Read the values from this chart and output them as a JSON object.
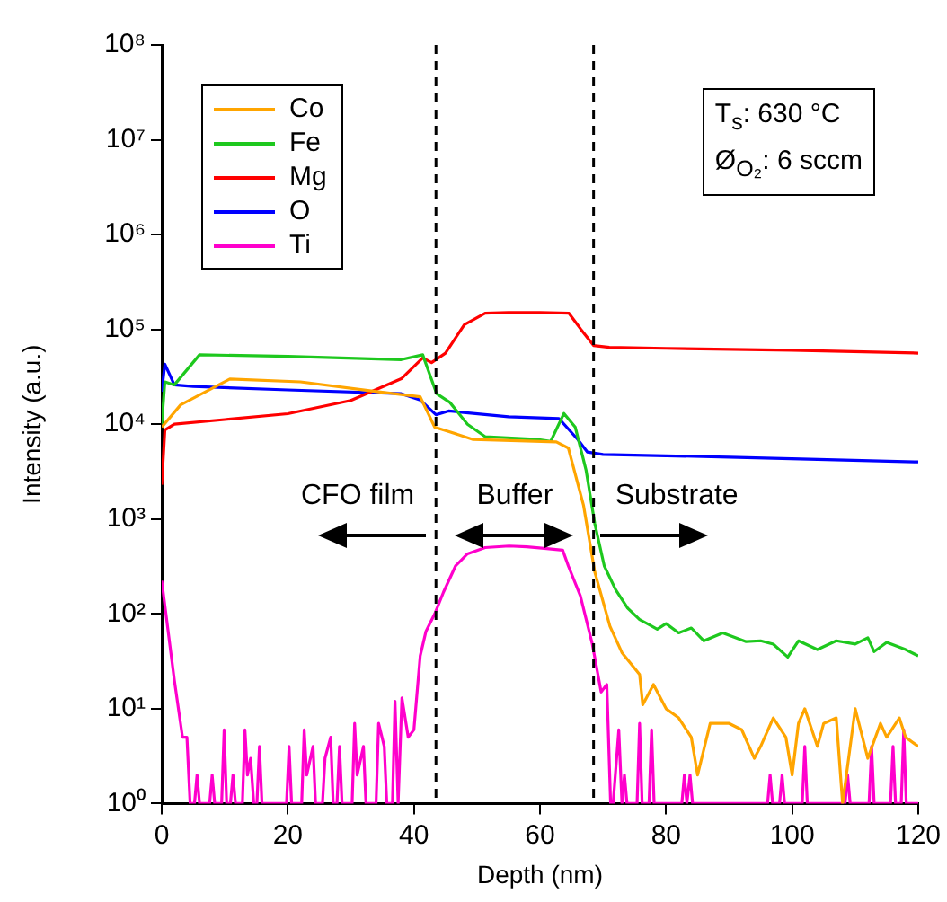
{
  "chart_data": {
    "type": "line",
    "xlabel": "Depth (nm)",
    "ylabel": "Intensity (a.u.)",
    "log": "y",
    "xlim": [
      0,
      120
    ],
    "xticks": [
      0,
      20,
      40,
      60,
      80,
      100,
      120
    ],
    "ylim": [
      1,
      100000000
    ],
    "yticks": [
      {
        "value": 1,
        "label": "10⁰"
      },
      {
        "value": 10,
        "label": "10¹"
      },
      {
        "value": 100,
        "label": "10²"
      },
      {
        "value": 1000,
        "label": "10³"
      },
      {
        "value": 10000,
        "label": "10⁴"
      },
      {
        "value": 100000,
        "label": "10⁵"
      },
      {
        "value": 1000000,
        "label": "10⁶"
      },
      {
        "value": 10000000,
        "label": "10⁷"
      },
      {
        "value": 100000000,
        "label": "10⁸"
      }
    ],
    "grid": false,
    "legend": "top left",
    "marker": "none",
    "line_style": "solid",
    "series": [
      {
        "name": "Co",
        "color": "#ffa500",
        "x": [
          0,
          3,
          10.8,
          22,
          34.4,
          41,
          43.3,
          45.7,
          49.4,
          62.6,
          64.5,
          66.9,
          68.7,
          71.1,
          73,
          75.8,
          76.3,
          78,
          80,
          82,
          84,
          85,
          87,
          90,
          92,
          94,
          95,
          97,
          99,
          100,
          101,
          102,
          104,
          105,
          107,
          108,
          110,
          112,
          114,
          115,
          117,
          118,
          120
        ],
        "values": [
          9300,
          16000,
          30000,
          28000,
          22000,
          19500,
          9300,
          8300,
          6900,
          6500,
          5600,
          1400,
          275,
          74,
          39,
          23,
          11,
          18,
          10,
          8,
          5,
          2,
          7,
          7,
          6,
          3,
          4,
          8,
          5,
          2,
          7,
          10,
          4,
          7,
          8,
          1,
          10,
          3,
          7,
          5,
          8,
          5,
          4
        ]
      },
      {
        "name": "Fe",
        "color": "#1ec81e",
        "x": [
          0,
          0.5,
          2,
          6,
          20,
          38,
          41.4,
          43.6,
          45.7,
          48.5,
          51.3,
          59.8,
          61.7,
          63.8,
          65.6,
          67.3,
          68.7,
          70.2,
          72,
          73.9,
          75.8,
          77,
          78.6,
          80,
          82,
          84,
          86,
          89,
          92.7,
          95,
          97,
          99.3,
          101,
          104,
          107,
          110,
          112,
          113,
          115,
          118,
          120
        ],
        "values": [
          10000,
          28000,
          26000,
          54000,
          52000,
          48000,
          54000,
          21000,
          17000,
          10000,
          7400,
          6900,
          6600,
          13000,
          9300,
          3300,
          890,
          320,
          180,
          115,
          87,
          79,
          69,
          79,
          63,
          71,
          52,
          63,
          51,
          52,
          48,
          35,
          52,
          42,
          52,
          48,
          56,
          40,
          50,
          42,
          36
        ]
      },
      {
        "name": "Mg",
        "color": "#ff0000",
        "x": [
          0,
          0.5,
          2,
          10,
          20,
          30,
          38,
          41.4,
          42.8,
          45,
          48,
          51.3,
          55,
          60,
          64.6,
          66.5,
          68.5,
          71,
          80,
          100,
          120
        ],
        "values": [
          2300,
          8700,
          10000,
          11200,
          12900,
          17800,
          30200,
          50100,
          44700,
          56200,
          112000,
          148000,
          151000,
          151000,
          148000,
          100000,
          67600,
          64600,
          63100,
          60300,
          56200
        ]
      },
      {
        "name": "O",
        "color": "#0000ff",
        "x": [
          0,
          0.5,
          2,
          5,
          20,
          38,
          41,
          43.5,
          45.5,
          55,
          63,
          66,
          67.5,
          70,
          90,
          120
        ],
        "values": [
          22000,
          43000,
          26000,
          25000,
          23000,
          21000,
          18000,
          12600,
          13800,
          12000,
          11500,
          6900,
          5100,
          4800,
          4500,
          4000
        ]
      },
      {
        "name": "Ti",
        "color": "#ff00cc",
        "x": [
          0,
          2,
          3.3,
          4,
          4.5,
          5.2,
          5.6,
          6,
          7.6,
          8,
          8.4,
          9.5,
          9.9,
          10.3,
          10.9,
          11.3,
          11.7,
          12.8,
          13.2,
          13.6,
          14.1,
          14.6,
          15.1,
          15.5,
          15.9,
          19.8,
          20.2,
          20.6,
          22.2,
          22.6,
          23,
          24,
          24.4,
          25.5,
          25.9,
          26.8,
          27.2,
          27.8,
          28.2,
          28.6,
          30.2,
          30.6,
          31,
          32,
          32.4,
          34,
          34.4,
          35.3,
          35.7,
          36.6,
          37,
          37.5,
          38.1,
          39.1,
          40,
          41,
          41.9,
          43.3,
          44.7,
          46.6,
          48.5,
          51.3,
          55.1,
          57.9,
          60.7,
          63.6,
          64.5,
          66.4,
          68.3,
          69.7,
          70.6,
          71.2,
          71.6,
          72.5,
          73,
          73.4,
          73.8,
          75.4,
          75.8,
          76.2,
          77.3,
          77.7,
          78.1,
          82.5,
          82.9,
          83.3,
          83.8,
          84.2,
          96.1,
          96.5,
          96.9,
          98,
          98.4,
          98.8,
          101.6,
          102,
          102.4,
          108.4,
          108.8,
          109.2,
          112.2,
          112.6,
          113,
          115.6,
          116,
          116.4,
          117.3,
          117.7,
          118.1,
          120
        ],
        "values": [
          224,
          20,
          5,
          5,
          1,
          1,
          2,
          1,
          1,
          2,
          1,
          1,
          6,
          1,
          1,
          2,
          1,
          1,
          6,
          2,
          3,
          1,
          1,
          4,
          1,
          1,
          4,
          1,
          1,
          6,
          2,
          4,
          1,
          1,
          3,
          5,
          1,
          1,
          4,
          1,
          1,
          7,
          2,
          4,
          1,
          1,
          7,
          4,
          1,
          1,
          12,
          1,
          13,
          5,
          6,
          36,
          65,
          100,
          170,
          320,
          430,
          500,
          520,
          510,
          490,
          470,
          320,
          155,
          48,
          15,
          18,
          1,
          1,
          6,
          1,
          2,
          1,
          1,
          7,
          1,
          1,
          6,
          1,
          1,
          2,
          1,
          2,
          1,
          1,
          2,
          1,
          1,
          2,
          1,
          1,
          4,
          1,
          1,
          2,
          1,
          1,
          4,
          1,
          1,
          4,
          1,
          1,
          6,
          1,
          1
        ]
      }
    ],
    "ref_lines": [
      {
        "axis": "x",
        "value": 43.5,
        "color": "#000000",
        "line_style": "dashed"
      },
      {
        "axis": "x",
        "value": 68.5,
        "color": "#000000",
        "line_style": "dashed"
      }
    ],
    "annotations": [
      "CFO film",
      "Buffer",
      "Substrate",
      "T$_{s}$: 630 °C",
      "Ø$_{O₂}$: 6 sccm"
    ]
  }
}
